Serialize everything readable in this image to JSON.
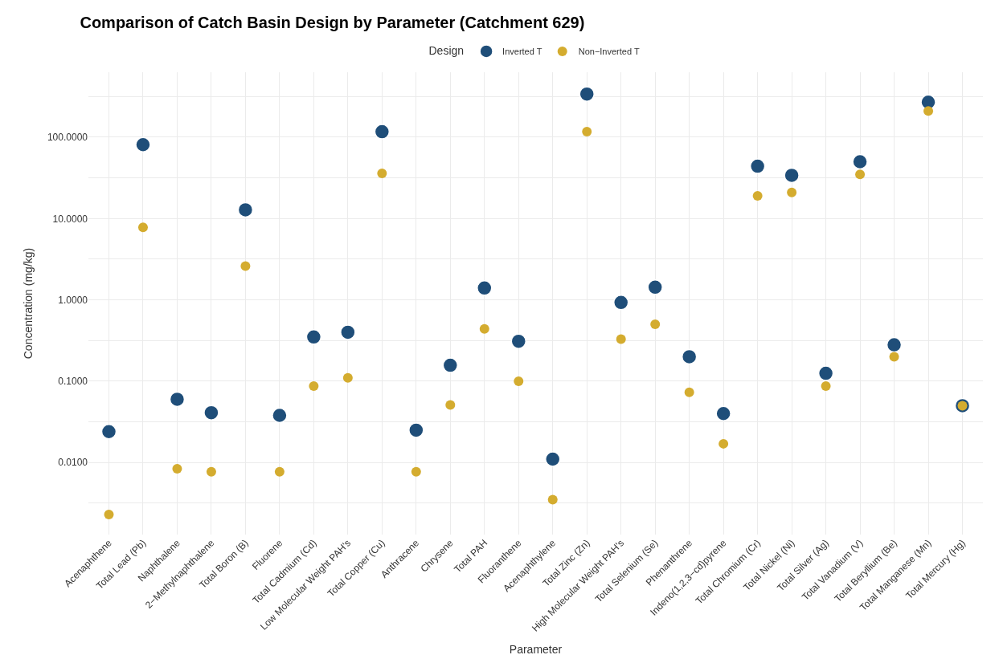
{
  "chart_data": {
    "type": "scatter",
    "title": "Comparison of Catch Basin Design by Parameter (Catchment 629)",
    "xlabel": "Parameter",
    "ylabel": "Concentration (mg/kg)",
    "legend_title": "Design",
    "legend": "top",
    "grid": true,
    "log": "y",
    "marker": "circle",
    "categories": [
      "Acenaphthene",
      "Total Lead (Pb)",
      "Naphthalene",
      "2−Methylnaphthalene",
      "Total Boron (B)",
      "Fluorene",
      "Total Cadmium (Cd)",
      "Low Molecular Weight PAH's",
      "Total Copper (Cu)",
      "Anthracene",
      "Chrysene",
      "Total PAH",
      "Fluoranthene",
      "Acenaphthylene",
      "Total Zinc (Zn)",
      "High Molecular Weight PAH's",
      "Total Selenium (Se)",
      "Phenanthrene",
      "Indeno(1,2,3−cd)pyrene",
      "Total Chromium (Cr)",
      "Total Nickel (Ni)",
      "Total Silver (Ag)",
      "Total Vanadium (V)",
      "Total Beryllium (Be)",
      "Total Manganese (Mn)",
      "Total Mercury (Hg)"
    ],
    "ylim": [
      0.0013,
      630
    ],
    "yticks": [
      {
        "value": 0.00316,
        "label": null
      },
      {
        "value": 0.01,
        "label": "0.0100"
      },
      {
        "value": 0.0316,
        "label": null
      },
      {
        "value": 0.1,
        "label": "0.1000"
      },
      {
        "value": 0.316,
        "label": null
      },
      {
        "value": 1,
        "label": "1.0000"
      },
      {
        "value": 3.16,
        "label": null
      },
      {
        "value": 10,
        "label": "10.0000"
      },
      {
        "value": 31.6,
        "label": null
      },
      {
        "value": 100,
        "label": "100.0000"
      },
      {
        "value": 316,
        "label": null
      }
    ],
    "series": [
      {
        "name": "Inverted T",
        "color": "#1f4e79",
        "values": [
          0.024,
          81,
          0.06,
          0.041,
          12.8,
          0.038,
          0.35,
          0.4,
          117,
          0.025,
          0.157,
          1.4,
          0.31,
          0.011,
          340,
          0.93,
          1.43,
          0.2,
          0.04,
          44,
          34,
          0.125,
          50,
          0.28,
          270,
          0.05
        ]
      },
      {
        "name": "Non−Inverted T",
        "color": "#d4ac2f",
        "values": [
          0.0023,
          7.8,
          0.0084,
          0.0077,
          2.6,
          0.0077,
          0.087,
          0.11,
          36,
          0.0077,
          0.051,
          0.44,
          0.1,
          0.0035,
          117,
          0.33,
          0.5,
          0.073,
          0.017,
          19,
          21,
          0.087,
          35,
          0.2,
          210,
          0.05
        ]
      }
    ]
  }
}
